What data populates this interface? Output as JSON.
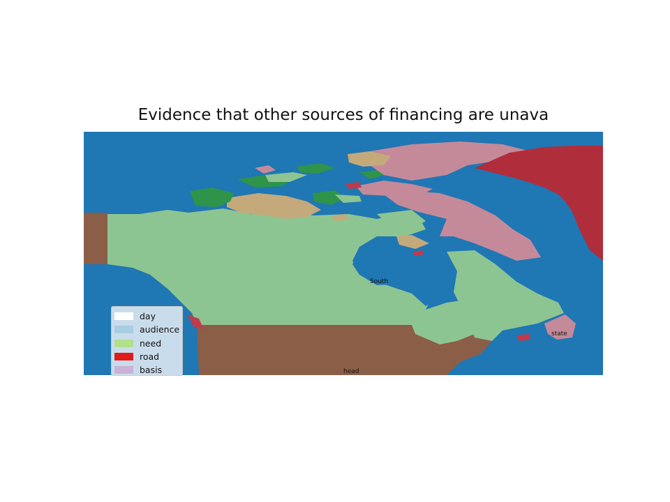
{
  "title": "Evidence that other sources of financing are unava",
  "map": {
    "colors": {
      "ocean": "#1f77b4",
      "land_main": "#8dc592",
      "land_us": "#8b5e47",
      "greenland": "#b02d3c",
      "arctic_pink": "#c58a9a",
      "arctic_tan": "#c4a97b",
      "arctic_green": "#2e944a",
      "small_red": "#c23a4a"
    },
    "place_labels": [
      {
        "text": "South"
      },
      {
        "text": "state"
      },
      {
        "text": "head"
      }
    ]
  },
  "legend": {
    "items": [
      {
        "label": "day",
        "color": "#ffffff"
      },
      {
        "label": "audience",
        "color": "#a6cee3"
      },
      {
        "label": "need",
        "color": "#b2df8a"
      },
      {
        "label": "road",
        "color": "#e31a1c"
      },
      {
        "label": "basis",
        "color": "#cab2d6"
      }
    ]
  }
}
